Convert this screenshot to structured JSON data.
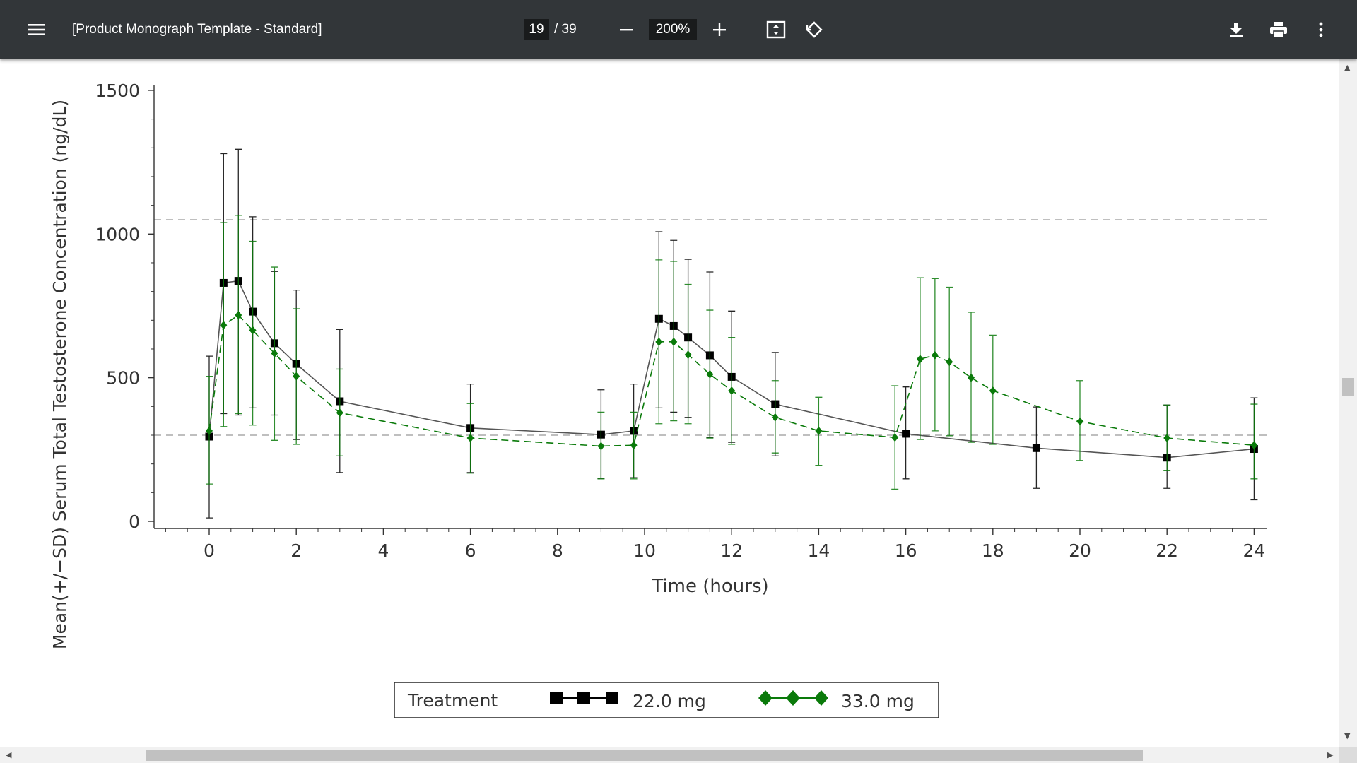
{
  "viewer": {
    "title": "[Product Monograph Template - Standard]",
    "current_page": "19",
    "page_total": "/ 39",
    "zoom": "200%",
    "menu_icon": "hamburger-menu-icon",
    "icons": [
      "zoom-out-icon",
      "zoom-in-icon",
      "fit-page-icon",
      "rotate-icon",
      "download-icon",
      "print-icon",
      "more-vert-icon"
    ]
  },
  "chart_data": {
    "type": "line",
    "xlabel": "Time (hours)",
    "ylabel": "Mean(+/−SD) Serum Total Testosterone Concentration (ng/dL)",
    "xlim": [
      -1.25,
      24.3
    ],
    "ylim": [
      -25,
      1510
    ],
    "xticks": [
      0,
      2,
      4,
      6,
      8,
      10,
      12,
      14,
      16,
      18,
      20,
      22,
      24
    ],
    "yticks": [
      0,
      500,
      1000,
      1500
    ],
    "reference_lines": [
      300,
      1050
    ],
    "legend": {
      "title": "Treatment",
      "placement": "bottom"
    },
    "series": [
      {
        "name": "22.0 mg",
        "color": "#000000",
        "marker": "square",
        "line_style": "solid",
        "x": [
          0,
          0.33,
          0.67,
          1,
          1.5,
          2,
          3,
          6,
          9,
          9.75,
          10.33,
          10.67,
          11,
          11.5,
          12,
          13,
          16,
          19,
          22,
          24
        ],
        "y": [
          295,
          830,
          837,
          730,
          620,
          548,
          418,
          325,
          302,
          315,
          705,
          680,
          640,
          578,
          503,
          408,
          305,
          255,
          222,
          252
        ],
        "sd_upper": [
          575,
          1280,
          1295,
          1060,
          870,
          805,
          668,
          478,
          458,
          478,
          1008,
          978,
          912,
          868,
          732,
          588,
          468,
          398,
          405,
          430
        ],
        "sd_lower": [
          12,
          375,
          370,
          395,
          370,
          285,
          170,
          170,
          150,
          152,
          395,
          380,
          362,
          292,
          275,
          228,
          148,
          115,
          115,
          75
        ]
      },
      {
        "name": "33.0 mg",
        "color": "#0a7a0a",
        "marker": "diamond",
        "line_style": "dashed",
        "x": [
          0,
          0.33,
          0.67,
          1,
          1.5,
          2,
          3,
          6,
          9,
          9.75,
          10.33,
          10.67,
          11,
          11.5,
          12,
          13,
          14,
          15.75,
          16.33,
          16.67,
          17,
          17.5,
          18,
          20,
          22,
          24
        ],
        "y": [
          315,
          683,
          718,
          665,
          585,
          505,
          378,
          290,
          262,
          265,
          625,
          625,
          580,
          512,
          455,
          362,
          315,
          292,
          565,
          578,
          555,
          500,
          455,
          348,
          290,
          265
        ],
        "sd_upper": [
          505,
          1040,
          1065,
          975,
          885,
          740,
          530,
          410,
          380,
          380,
          910,
          905,
          825,
          735,
          640,
          490,
          432,
          472,
          848,
          845,
          815,
          728,
          648,
          490,
          405,
          408
        ],
        "sd_lower": [
          130,
          330,
          375,
          335,
          282,
          268,
          228,
          168,
          148,
          148,
          340,
          350,
          340,
          290,
          268,
          238,
          195,
          112,
          285,
          315,
          298,
          275,
          268,
          212,
          178,
          148
        ]
      }
    ]
  }
}
